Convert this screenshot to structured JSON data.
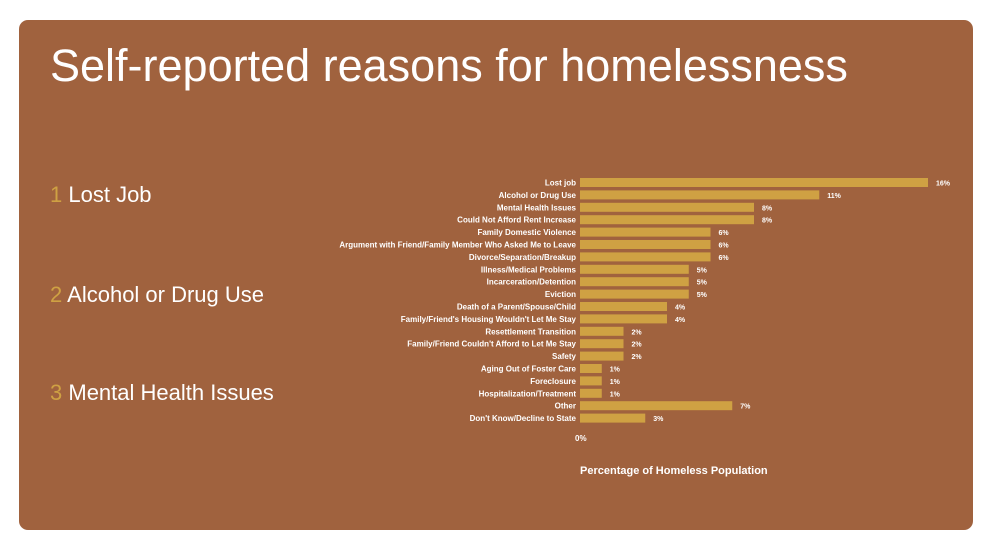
{
  "title": "Self-reported reasons for homelessness",
  "top_reasons": [
    {
      "rank": "1",
      "label": "Lost Job"
    },
    {
      "rank": "2",
      "label": "Alcohol or Drug Use"
    },
    {
      "rank": "3",
      "label": "Mental Health Issues"
    }
  ],
  "colors": {
    "background": "#a0623e",
    "bar": "#cfa143",
    "text": "#ffffff",
    "accent": "#cfa143"
  },
  "chart_data": {
    "type": "bar",
    "orientation": "horizontal",
    "categories": [
      "Lost job",
      "Alcohol or Drug Use",
      "Mental Health Issues",
      "Could Not Afford Rent Increase",
      "Family Domestic Violence",
      "Argument with Friend/Family Member Who Asked Me to Leave",
      "Divorce/Separation/Breakup",
      "Illness/Medical Problems",
      "Incarceration/Detention",
      "Eviction",
      "Death of a Parent/Spouse/Child",
      "Family/Friend's Housing Wouldn't Let Me Stay",
      "Resettlement Transition",
      "Family/Friend Couldn't Afford to Let Me Stay",
      "Safety",
      "Aging Out of Foster Care",
      "Foreclosure",
      "Hospitalization/Treatment",
      "Other",
      "Don't Know/Decline to State"
    ],
    "values": [
      16,
      11,
      8,
      8,
      6,
      6,
      6,
      5,
      5,
      5,
      4,
      4,
      2,
      2,
      2,
      1,
      1,
      1,
      7,
      3
    ],
    "value_labels": [
      "16%",
      "11%",
      "8%",
      "8%",
      "6%",
      "6%",
      "6%",
      "5%",
      "5%",
      "5%",
      "4%",
      "4%",
      "2%",
      "2%",
      "2%",
      "1%",
      "1%",
      "1%",
      "7%",
      "3%"
    ],
    "x_tick_labels": [
      "0%"
    ],
    "xlabel": "Percentage of Homeless Population",
    "ylabel": "",
    "xlim": [
      0,
      16
    ],
    "grid": false,
    "legend": "none"
  }
}
